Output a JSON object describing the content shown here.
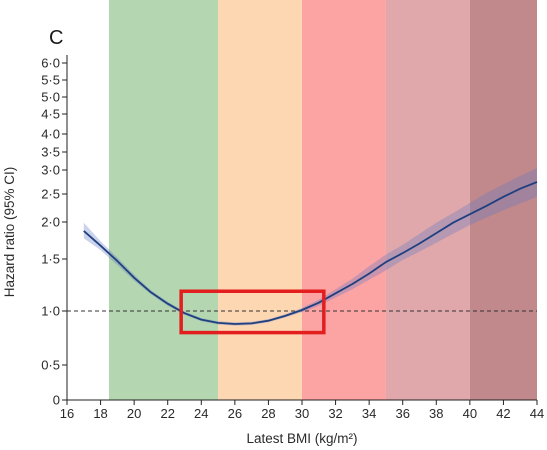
{
  "chart_data": {
    "type": "line",
    "panel_label": "C",
    "xlabel": "Latest BMI (kg/m²)",
    "ylabel": "Hazard ratio (95% CI)",
    "xlim": [
      16,
      44
    ],
    "x_ticks": [
      16,
      18,
      20,
      22,
      24,
      26,
      28,
      30,
      32,
      34,
      36,
      38,
      40,
      42,
      44
    ],
    "x_tick_labels": [
      "16",
      "18",
      "20",
      "22",
      "24",
      "26",
      "28",
      "30",
      "32",
      "34",
      "36",
      "38",
      "40",
      "42",
      "44"
    ],
    "y_ticks": [
      {
        "value": 0,
        "label": "0"
      },
      {
        "value": 0.5,
        "label": "0·5"
      },
      {
        "value": 1.0,
        "label": "1·0"
      },
      {
        "value": 1.5,
        "label": "1·5"
      },
      {
        "value": 2.0,
        "label": "2·0"
      },
      {
        "value": 2.5,
        "label": "2·5"
      },
      {
        "value": 3.0,
        "label": "3·0"
      },
      {
        "value": 3.5,
        "label": "3·5"
      },
      {
        "value": 4.0,
        "label": "4·0"
      },
      {
        "value": 4.5,
        "label": "4·5"
      },
      {
        "value": 5.0,
        "label": "5·0"
      },
      {
        "value": 5.5,
        "label": "5·5"
      },
      {
        "value": 6.0,
        "label": "6·0"
      }
    ],
    "y_scale": "log-like (0 at baseline)",
    "reference_line": {
      "y": 1.0,
      "style": "dashed"
    },
    "bands": [
      {
        "from": 16,
        "to": 18.5,
        "color": "#ffffff"
      },
      {
        "from": 18.5,
        "to": 25,
        "color": "#b4d6b0"
      },
      {
        "from": 25,
        "to": 30,
        "color": "#fdd6b2"
      },
      {
        "from": 30,
        "to": 35,
        "color": "#fca3a3"
      },
      {
        "from": 35,
        "to": 40,
        "color": "#e0a8ab"
      },
      {
        "from": 40,
        "to": 44,
        "color": "#c1898b"
      }
    ],
    "series": [
      {
        "color": "#1f3f7f",
        "x": [
          17,
          18,
          19,
          20,
          21,
          22,
          23,
          24,
          25,
          26,
          27,
          28,
          29,
          30,
          31,
          32,
          33,
          34,
          35,
          36,
          37,
          38,
          39,
          40,
          41,
          42,
          43,
          44
        ],
        "y": [
          1.88,
          1.68,
          1.48,
          1.32,
          1.18,
          1.07,
          0.98,
          0.92,
          0.89,
          0.88,
          0.885,
          0.91,
          0.955,
          1.01,
          1.08,
          1.17,
          1.26,
          1.36,
          1.47,
          1.58,
          1.71,
          1.85,
          1.99,
          2.14,
          2.29,
          2.45,
          2.61,
          2.75
        ],
        "lo": [
          1.78,
          1.62,
          1.44,
          1.29,
          1.16,
          1.05,
          0.965,
          0.905,
          0.875,
          0.865,
          0.87,
          0.895,
          0.94,
          0.99,
          1.05,
          1.13,
          1.21,
          1.3,
          1.39,
          1.49,
          1.6,
          1.72,
          1.84,
          1.96,
          2.08,
          2.21,
          2.33,
          2.45
        ],
        "hi": [
          1.99,
          1.74,
          1.52,
          1.35,
          1.2,
          1.09,
          0.995,
          0.935,
          0.905,
          0.895,
          0.9,
          0.925,
          0.97,
          1.03,
          1.11,
          1.21,
          1.31,
          1.43,
          1.56,
          1.69,
          1.84,
          1.99,
          2.16,
          2.34,
          2.52,
          2.7,
          2.88,
          3.05
        ]
      }
    ],
    "highlight_box": {
      "x_from": 22.8,
      "x_to": 31.3,
      "y_from": 0.8,
      "y_to": 1.19,
      "color": "#e31e1e"
    },
    "grid": false
  }
}
